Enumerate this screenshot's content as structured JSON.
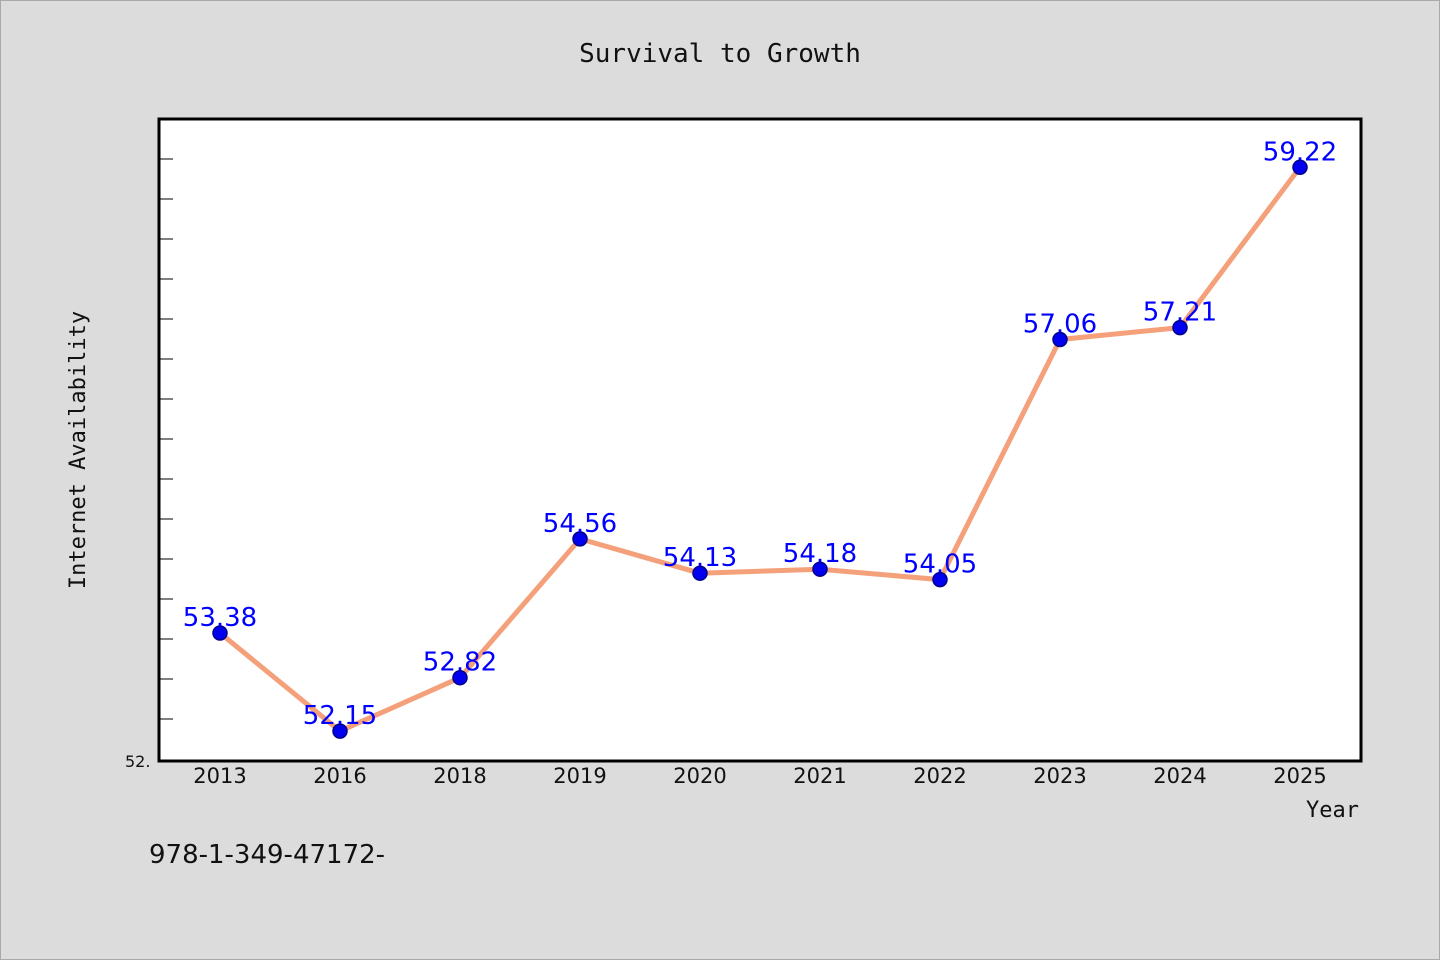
{
  "chart_data": {
    "type": "line",
    "title": "Survival to Growth",
    "xlabel": "Year",
    "ylabel": "Internet Availability",
    "categories": [
      "2013",
      "2016",
      "2018",
      "2019",
      "2020",
      "2021",
      "2022",
      "2023",
      "2024",
      "2025"
    ],
    "series": [
      {
        "values": [
          53.38,
          52.15,
          52.82,
          54.56,
          54.13,
          54.18,
          54.05,
          57.06,
          57.21,
          59.22
        ],
        "labels": [
          "53.38",
          "52.15",
          "52.82",
          "54.56",
          "54.13",
          "54.18",
          "54.05",
          "57.06",
          "57.21",
          "59.22"
        ]
      }
    ],
    "ylim": [
      51.8,
      59.8
    ],
    "y_tick_label": "52.",
    "grid": false,
    "legend": "none",
    "colors": {
      "line": "#f4a07a",
      "marker": "#0000ee",
      "marker_edge": "#00008b",
      "data_label": "#0000ff",
      "plot_background": "#ffffff",
      "figure_background": "#dcdcdc"
    }
  },
  "footer_text": "978-1-349-47172-"
}
